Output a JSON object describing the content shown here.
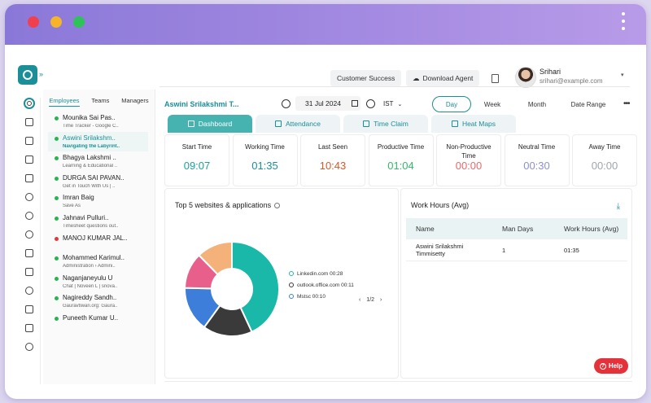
{
  "header": {
    "customer_success": "Customer Success",
    "download_agent": "Download Agent",
    "user_name": "Srihari",
    "user_email": "srihari@example.com"
  },
  "employee_tabs": [
    "Employees",
    "Teams",
    "Managers"
  ],
  "employees": [
    {
      "name": "Mounika Sai Pas..",
      "sub": "Time Tracker - Google C..",
      "status": "online"
    },
    {
      "name": "Aswini Srilakshm..",
      "sub": "Navigating the Labyrint..",
      "status": "online",
      "selected": true
    },
    {
      "name": "Bhagya Lakshmi ..",
      "sub": "Learning & Educational ..",
      "status": "online"
    },
    {
      "name": "DURGA SAI PAVAN..",
      "sub": "Get in Touch With Us | ..",
      "status": "online"
    },
    {
      "name": "Imran Baig",
      "sub": "Save As",
      "status": "online"
    },
    {
      "name": "Jahnavi Pulluri..",
      "sub": "Timesheet questions out..",
      "status": "online"
    },
    {
      "name": "MANOJ KUMAR JAL..",
      "sub": "",
      "status": "offline"
    },
    {
      "name": "Mohammed Karimul..",
      "sub": "Administration › Admini..",
      "status": "online"
    },
    {
      "name": "Naganjaneyulu U",
      "sub": "Chat | Noveen L | snova..",
      "status": "online"
    },
    {
      "name": "Nagireddy Sandh..",
      "sub": "Gauravtiwari.org: Gaura..",
      "status": "online"
    },
    {
      "name": "Puneeth Kumar U..",
      "sub": "",
      "status": "online"
    }
  ],
  "toolbar": {
    "selected_employee": "Aswini Srilakshmi T...",
    "date": "31 Jul 2024",
    "timezone": "IST",
    "ranges": [
      "Day",
      "Week",
      "Month",
      "Date Range"
    ]
  },
  "tabs": [
    "Dashboard",
    "Attendance",
    "Time Claim",
    "Heat Maps"
  ],
  "stats": [
    {
      "label": "Start Time",
      "value": "09:07",
      "color": "#1aa39c"
    },
    {
      "label": "Working Time",
      "value": "01:35",
      "color": "#1a8f98"
    },
    {
      "label": "Last Seen",
      "value": "10:43",
      "color": "#d9582b"
    },
    {
      "label": "Productive Time",
      "value": "01:04",
      "color": "#33b86a"
    },
    {
      "label": "Non-Productive Time",
      "value": "00:00",
      "color": "#e86a6a"
    },
    {
      "label": "Neutral Time",
      "value": "00:30",
      "color": "#8d8fd6"
    },
    {
      "label": "Away Time",
      "value": "00:00",
      "color": "#a0a6ad"
    }
  ],
  "websites_panel": {
    "title": "Top 5 websites & applications",
    "legend": [
      "Linkedin.com 00:28",
      "outlook.office.com 00:11",
      "Mstsc 00:10"
    ],
    "pager": "1/2"
  },
  "chart_data": {
    "type": "pie",
    "slices": [
      {
        "value": 28,
        "color": "#1ab8a8"
      },
      {
        "value": 11,
        "color": "#3a3a3a"
      },
      {
        "value": 10,
        "color": "#3d7edb"
      },
      {
        "value": 8,
        "color": "#e95f8b"
      },
      {
        "value": 8,
        "color": "#f4b27a"
      }
    ]
  },
  "work_hours": {
    "title": "Work Hours (Avg)",
    "columns": [
      "Name",
      "Man Days",
      "Work Hours (Avg)"
    ],
    "rows": [
      {
        "name": "Aswini Srilakshmi Timmisetty",
        "man_days": "1",
        "work_hours": "01:35"
      }
    ]
  },
  "help": "Help"
}
